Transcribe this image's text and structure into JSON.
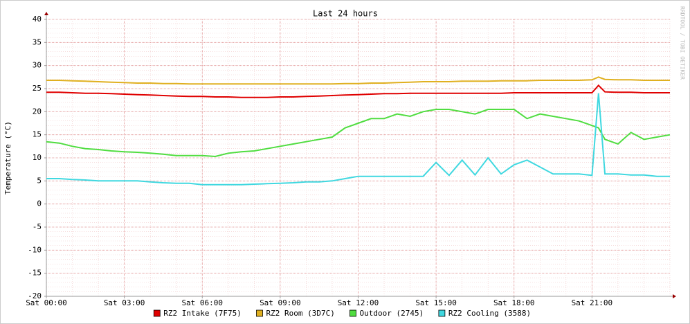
{
  "chart_data": {
    "type": "line",
    "title": "Last 24 hours",
    "y_label": "Temperature (°C)",
    "watermark": "RRDTOOL / TOBI OETIKER",
    "x": [
      0,
      0.5,
      1,
      1.5,
      2,
      2.5,
      3,
      3.5,
      4,
      4.5,
      5,
      5.5,
      6,
      6.5,
      7,
      7.5,
      8,
      8.5,
      9,
      9.5,
      10,
      10.5,
      11,
      11.5,
      12,
      12.5,
      13,
      13.5,
      14,
      14.5,
      15,
      15.5,
      16,
      16.5,
      17,
      17.5,
      18,
      18.5,
      19,
      19.5,
      20,
      20.5,
      21,
      21.25,
      21.5,
      22,
      22.5,
      23,
      23.5,
      24
    ],
    "xlim": [
      0,
      24
    ],
    "xticks": [
      {
        "value": 0,
        "label": "Sat 00:00"
      },
      {
        "value": 3,
        "label": "Sat 03:00"
      },
      {
        "value": 6,
        "label": "Sat 06:00"
      },
      {
        "value": 9,
        "label": "Sat 09:00"
      },
      {
        "value": 12,
        "label": "Sat 12:00"
      },
      {
        "value": 15,
        "label": "Sat 15:00"
      },
      {
        "value": 18,
        "label": "Sat 18:00"
      },
      {
        "value": 21,
        "label": "Sat 21:00"
      }
    ],
    "ylim": [
      -20,
      40
    ],
    "yticks": [
      -20,
      -15,
      -10,
      -5,
      0,
      5,
      10,
      15,
      20,
      25,
      30,
      35,
      40
    ],
    "grid": true,
    "series": [
      {
        "name": "RZ2 Intake (7F75)",
        "color": "#e00000",
        "values": [
          24.2,
          24.2,
          24.1,
          24,
          24,
          23.9,
          23.8,
          23.7,
          23.6,
          23.5,
          23.4,
          23.3,
          23.3,
          23.2,
          23.2,
          23.1,
          23.1,
          23.1,
          23.2,
          23.2,
          23.3,
          23.4,
          23.5,
          23.6,
          23.7,
          23.8,
          23.9,
          23.9,
          24,
          24,
          24,
          24,
          24,
          24,
          24,
          24,
          24.1,
          24.1,
          24.1,
          24.1,
          24.1,
          24.1,
          24.1,
          25.7,
          24.3,
          24.2,
          24.2,
          24.1,
          24.1,
          24.1
        ]
      },
      {
        "name": "RZ2 Room (3D7C)",
        "color": "#e0b020",
        "values": [
          26.8,
          26.8,
          26.7,
          26.6,
          26.5,
          26.4,
          26.3,
          26.2,
          26.2,
          26.1,
          26.1,
          26,
          26,
          26,
          26,
          26,
          26,
          26,
          26,
          26,
          26,
          26,
          26,
          26.1,
          26.1,
          26.2,
          26.2,
          26.3,
          26.4,
          26.5,
          26.5,
          26.5,
          26.6,
          26.6,
          26.6,
          26.7,
          26.7,
          26.7,
          26.8,
          26.8,
          26.8,
          26.8,
          26.9,
          27.5,
          27,
          26.9,
          26.9,
          26.8,
          26.8,
          26.8
        ]
      },
      {
        "name": "Outdoor (2745)",
        "color": "#50dd40",
        "values": [
          13.5,
          13.2,
          12.5,
          12,
          11.8,
          11.5,
          11.3,
          11.2,
          11,
          10.8,
          10.5,
          10.5,
          10.5,
          10.3,
          11,
          11.3,
          11.5,
          12,
          12.5,
          13,
          13.5,
          14,
          14.5,
          16.5,
          17.5,
          18.5,
          18.5,
          19.5,
          19,
          20,
          20.5,
          20.5,
          20,
          19.5,
          20.5,
          20.5,
          20.5,
          18.5,
          19.5,
          19,
          18.5,
          18,
          17,
          16.5,
          14,
          13,
          15.5,
          14,
          14.5,
          15
        ]
      },
      {
        "name": "RZ2 Cooling (3588)",
        "color": "#40d8e0",
        "values": [
          5.5,
          5.5,
          5.3,
          5.2,
          5,
          5,
          5,
          5,
          4.8,
          4.6,
          4.5,
          4.5,
          4.2,
          4.2,
          4.2,
          4.2,
          4.3,
          4.4,
          4.5,
          4.6,
          4.8,
          4.8,
          5,
          5.5,
          6,
          6,
          6,
          6,
          6,
          6,
          9,
          6.2,
          9.5,
          6.3,
          10,
          6.5,
          8.5,
          9.5,
          8,
          6.5,
          6.5,
          6.5,
          6.2,
          24,
          6.5,
          6.5,
          6.3,
          6.3,
          6,
          6
        ]
      }
    ]
  }
}
